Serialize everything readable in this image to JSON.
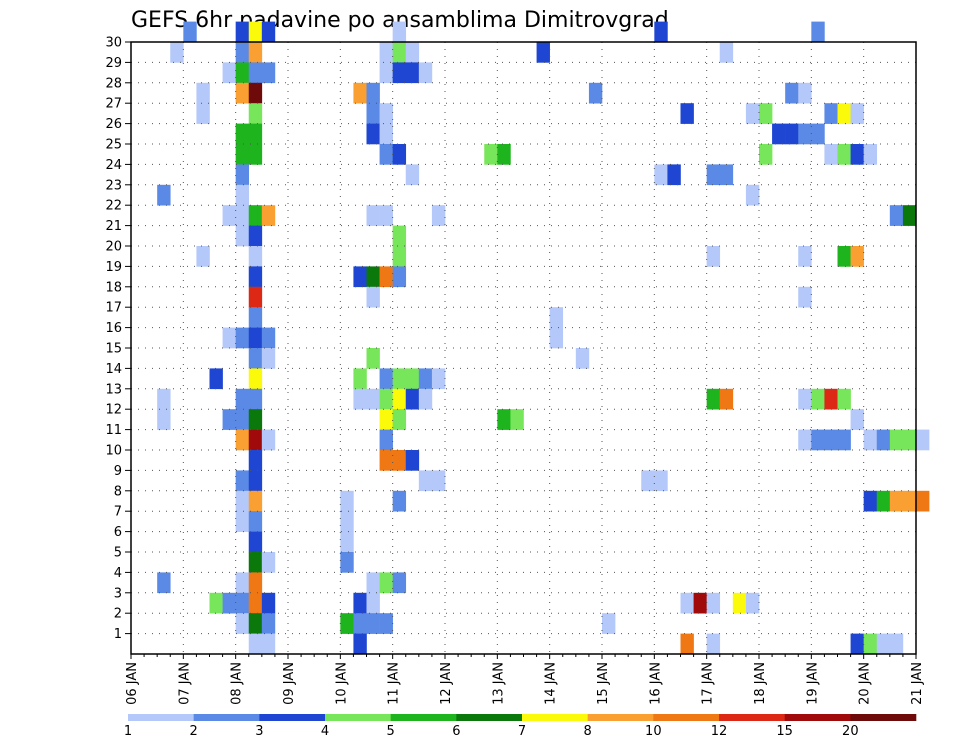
{
  "chart_data": {
    "type": "heatmap",
    "title": "GEFS 6hr padavine po ansamblima Dimitrovgrad",
    "xlabel": "",
    "ylabel": "",
    "x_step_hours": 6,
    "x_start": "06 JAN 00Z",
    "x_tick_labels": [
      "06 JAN",
      "07 JAN",
      "08 JAN",
      "09 JAN",
      "10 JAN",
      "11 JAN",
      "12 JAN",
      "13 JAN",
      "14 JAN",
      "15 JAN",
      "16 JAN",
      "17 JAN",
      "18 JAN",
      "19 JAN",
      "20 JAN",
      "21 JAN"
    ],
    "y_tick_labels": [
      "1",
      "2",
      "3",
      "4",
      "5",
      "6",
      "7",
      "8",
      "9",
      "10",
      "11",
      "12",
      "13",
      "14",
      "15",
      "16",
      "17",
      "18",
      "19",
      "20",
      "21",
      "22",
      "23",
      "24",
      "25",
      "26",
      "27",
      "28",
      "29",
      "30"
    ],
    "ylim": [
      0,
      30
    ],
    "grid": true,
    "colorbar": {
      "labels": [
        "1",
        "2",
        "3",
        "4",
        "5",
        "6",
        "7",
        "8",
        "10",
        "12",
        "15",
        "20"
      ],
      "colors": [
        "#b4c8fa",
        "#5a8ae6",
        "#1e46d2",
        "#78e65a",
        "#1eb41e",
        "#0a780a",
        "#fafa0a",
        "#faa032",
        "#f07814",
        "#dc2814",
        "#a00a0a",
        "#6e0a0a"
      ]
    },
    "cells_note": "each cell: [6h step index from 06 JAN 00Z, ensemble member, color class 0..11]",
    "cells": [
      [
        4,
        30,
        1
      ],
      [
        8,
        30,
        2
      ],
      [
        9,
        30,
        6
      ],
      [
        10,
        30,
        2
      ],
      [
        20,
        30,
        0
      ],
      [
        40,
        30,
        2
      ],
      [
        52,
        30,
        1
      ],
      [
        3,
        29,
        0
      ],
      [
        8,
        29,
        1
      ],
      [
        9,
        29,
        7
      ],
      [
        19,
        29,
        0
      ],
      [
        20,
        29,
        3
      ],
      [
        21,
        29,
        0
      ],
      [
        31,
        29,
        2
      ],
      [
        45,
        29,
        0
      ],
      [
        7,
        28,
        0
      ],
      [
        8,
        28,
        4
      ],
      [
        9,
        28,
        1
      ],
      [
        10,
        28,
        1
      ],
      [
        19,
        28,
        0
      ],
      [
        20,
        28,
        2
      ],
      [
        21,
        28,
        2
      ],
      [
        22,
        28,
        0
      ],
      [
        5,
        27,
        0
      ],
      [
        8,
        27,
        7
      ],
      [
        9,
        27,
        11
      ],
      [
        17,
        27,
        7
      ],
      [
        18,
        27,
        1
      ],
      [
        35,
        27,
        1
      ],
      [
        50,
        27,
        1
      ],
      [
        51,
        27,
        0
      ],
      [
        5,
        26,
        0
      ],
      [
        9,
        26,
        3
      ],
      [
        18,
        26,
        1
      ],
      [
        19,
        26,
        0
      ],
      [
        42,
        26,
        2
      ],
      [
        47,
        26,
        0
      ],
      [
        48,
        26,
        3
      ],
      [
        53,
        26,
        1
      ],
      [
        54,
        26,
        6
      ],
      [
        55,
        26,
        0
      ],
      [
        8,
        25,
        4
      ],
      [
        9,
        25,
        4
      ],
      [
        18,
        25,
        2
      ],
      [
        19,
        25,
        0
      ],
      [
        49,
        25,
        2
      ],
      [
        50,
        25,
        2
      ],
      [
        51,
        25,
        1
      ],
      [
        52,
        25,
        1
      ],
      [
        8,
        24,
        4
      ],
      [
        9,
        24,
        4
      ],
      [
        19,
        24,
        1
      ],
      [
        20,
        24,
        2
      ],
      [
        27,
        24,
        3
      ],
      [
        28,
        24,
        4
      ],
      [
        48,
        24,
        3
      ],
      [
        53,
        24,
        0
      ],
      [
        54,
        24,
        3
      ],
      [
        55,
        24,
        2
      ],
      [
        56,
        24,
        0
      ],
      [
        8,
        23,
        1
      ],
      [
        21,
        23,
        0
      ],
      [
        40,
        23,
        0
      ],
      [
        41,
        23,
        2
      ],
      [
        44,
        23,
        1
      ],
      [
        45,
        23,
        1
      ],
      [
        2,
        22,
        1
      ],
      [
        8,
        22,
        0
      ],
      [
        47,
        22,
        0
      ],
      [
        7,
        21,
        0
      ],
      [
        8,
        21,
        0
      ],
      [
        9,
        21,
        4
      ],
      [
        10,
        21,
        7
      ],
      [
        18,
        21,
        0
      ],
      [
        19,
        21,
        0
      ],
      [
        23,
        21,
        0
      ],
      [
        58,
        21,
        1
      ],
      [
        59,
        21,
        5
      ],
      [
        8,
        20,
        0
      ],
      [
        9,
        20,
        2
      ],
      [
        20,
        20,
        3
      ],
      [
        5,
        19,
        0
      ],
      [
        9,
        19,
        0
      ],
      [
        20,
        19,
        3
      ],
      [
        44,
        19,
        0
      ],
      [
        51,
        19,
        0
      ],
      [
        54,
        19,
        4
      ],
      [
        55,
        19,
        7
      ],
      [
        9,
        18,
        2
      ],
      [
        17,
        18,
        2
      ],
      [
        18,
        18,
        5
      ],
      [
        19,
        18,
        8
      ],
      [
        20,
        18,
        1
      ],
      [
        9,
        17,
        9
      ],
      [
        18,
        17,
        0
      ],
      [
        51,
        17,
        0
      ],
      [
        9,
        16,
        1
      ],
      [
        32,
        16,
        0
      ],
      [
        7,
        15,
        0
      ],
      [
        8,
        15,
        1
      ],
      [
        9,
        15,
        2
      ],
      [
        10,
        15,
        1
      ],
      [
        32,
        15,
        0
      ],
      [
        9,
        14,
        1
      ],
      [
        10,
        14,
        0
      ],
      [
        18,
        14,
        3
      ],
      [
        34,
        14,
        0
      ],
      [
        6,
        13,
        2
      ],
      [
        9,
        13,
        6
      ],
      [
        17,
        13,
        3
      ],
      [
        19,
        13,
        1
      ],
      [
        20,
        13,
        3
      ],
      [
        21,
        13,
        3
      ],
      [
        22,
        13,
        1
      ],
      [
        23,
        13,
        0
      ],
      [
        2,
        12,
        0
      ],
      [
        8,
        12,
        1
      ],
      [
        9,
        12,
        1
      ],
      [
        17,
        12,
        0
      ],
      [
        18,
        12,
        0
      ],
      [
        19,
        12,
        3
      ],
      [
        20,
        12,
        6
      ],
      [
        21,
        12,
        2
      ],
      [
        22,
        12,
        0
      ],
      [
        44,
        12,
        4
      ],
      [
        45,
        12,
        8
      ],
      [
        51,
        12,
        0
      ],
      [
        52,
        12,
        3
      ],
      [
        53,
        12,
        9
      ],
      [
        54,
        12,
        3
      ],
      [
        2,
        11,
        0
      ],
      [
        7,
        11,
        1
      ],
      [
        8,
        11,
        1
      ],
      [
        9,
        11,
        5
      ],
      [
        19,
        11,
        6
      ],
      [
        20,
        11,
        3
      ],
      [
        28,
        11,
        4
      ],
      [
        29,
        11,
        3
      ],
      [
        55,
        11,
        0
      ],
      [
        8,
        10,
        7
      ],
      [
        9,
        10,
        10
      ],
      [
        10,
        10,
        0
      ],
      [
        19,
        10,
        1
      ],
      [
        51,
        10,
        0
      ],
      [
        52,
        10,
        1
      ],
      [
        53,
        10,
        1
      ],
      [
        54,
        10,
        1
      ],
      [
        56,
        10,
        0
      ],
      [
        57,
        10,
        1
      ],
      [
        58,
        10,
        3
      ],
      [
        59,
        10,
        3
      ],
      [
        60,
        10,
        0
      ],
      [
        9,
        9,
        2
      ],
      [
        19,
        9,
        8
      ],
      [
        20,
        9,
        8
      ],
      [
        21,
        9,
        2
      ],
      [
        8,
        8,
        1
      ],
      [
        9,
        8,
        2
      ],
      [
        22,
        8,
        0
      ],
      [
        23,
        8,
        0
      ],
      [
        39,
        8,
        0
      ],
      [
        40,
        8,
        0
      ],
      [
        8,
        7,
        0
      ],
      [
        9,
        7,
        7
      ],
      [
        16,
        7,
        0
      ],
      [
        20,
        7,
        1
      ],
      [
        56,
        7,
        2
      ],
      [
        57,
        7,
        4
      ],
      [
        58,
        7,
        7
      ],
      [
        59,
        7,
        7
      ],
      [
        60,
        7,
        8
      ],
      [
        8,
        6,
        0
      ],
      [
        9,
        6,
        1
      ],
      [
        16,
        6,
        0
      ],
      [
        9,
        5,
        2
      ],
      [
        16,
        5,
        0
      ],
      [
        9,
        4,
        5
      ],
      [
        10,
        4,
        0
      ],
      [
        16,
        4,
        1
      ],
      [
        2,
        3,
        1
      ],
      [
        8,
        3,
        0
      ],
      [
        9,
        3,
        8
      ],
      [
        18,
        3,
        0
      ],
      [
        19,
        3,
        3
      ],
      [
        20,
        3,
        1
      ],
      [
        6,
        2,
        3
      ],
      [
        7,
        2,
        1
      ],
      [
        8,
        2,
        1
      ],
      [
        9,
        2,
        8
      ],
      [
        10,
        2,
        2
      ],
      [
        17,
        2,
        2
      ],
      [
        18,
        2,
        0
      ],
      [
        42,
        2,
        0
      ],
      [
        43,
        2,
        10
      ],
      [
        44,
        2,
        0
      ],
      [
        46,
        2,
        6
      ],
      [
        47,
        2,
        0
      ],
      [
        8,
        1,
        0
      ],
      [
        9,
        1,
        5
      ],
      [
        10,
        1,
        1
      ],
      [
        16,
        1,
        4
      ],
      [
        17,
        1,
        1
      ],
      [
        18,
        1,
        1
      ],
      [
        19,
        1,
        1
      ],
      [
        36,
        1,
        0
      ],
      [
        9,
        0,
        0
      ],
      [
        10,
        0,
        0
      ],
      [
        17,
        0,
        2
      ],
      [
        42,
        0,
        8
      ],
      [
        44,
        0,
        0
      ],
      [
        55,
        0,
        2
      ],
      [
        56,
        0,
        3
      ],
      [
        57,
        0,
        0
      ],
      [
        58,
        0,
        0
      ]
    ]
  }
}
